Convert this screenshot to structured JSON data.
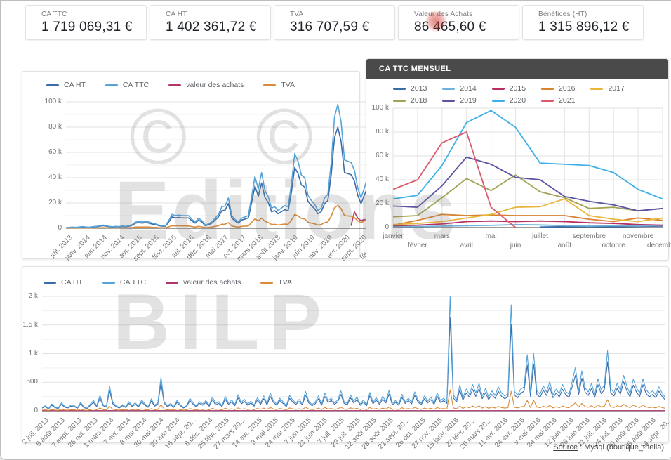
{
  "kpi_cards": [
    {
      "label": "CA TTC",
      "value": "1 719 069,31 €"
    },
    {
      "label": "CA HT",
      "value": "1 402 361,72 €"
    },
    {
      "label": "TVA",
      "value": "316 707,59 €"
    },
    {
      "label": "Valeur des Achats",
      "value": "86 465,60 €",
      "highlighted": true
    },
    {
      "label": "Bénéfices (HT)",
      "value": "1 315 896,12 €"
    }
  ],
  "watermark": {
    "copyright": "©",
    "editions": "Editions",
    "bilp": "BILP"
  },
  "source": {
    "label": "Source",
    "rest": " : Mysql (boutique_thelia)"
  },
  "colors": {
    "ca_ht": "#3a6ca8",
    "ca_ttc": "#55a3d9",
    "achats": "#b0356f",
    "tva": "#d98b38",
    "header_bar": "#4a4a4a",
    "grid_major": "#e2e2e2",
    "grid_minor": "#f0f0f0",
    "axis": "#5f5f5f"
  },
  "chart_data": [
    {
      "type": "line",
      "title": "",
      "unit": "k€",
      "ylim": [
        0,
        100
      ],
      "y_ticks": [
        "100 k",
        "80 k",
        "60 k",
        "40 k",
        "20 k",
        "0"
      ],
      "x_tick_labels": [
        "juil. 2013",
        "janv. 2014",
        "juin 2014",
        "nov. 2014",
        "avr. 2015",
        "sept. 2015",
        "févr. 2016",
        "juil. 2016",
        "déc. 2016",
        "mai 2017",
        "oct. 2017",
        "mars 2018",
        "août 2018",
        "janv. 2019",
        "juin 2019",
        "nov. 2019",
        "avr. 2020",
        "sept. 2020",
        "févr. 2021"
      ],
      "n_points": 95,
      "legend_order": [
        1,
        0,
        3,
        2
      ],
      "series": [
        {
          "name": "CA TTC",
          "color": "#55a3d9",
          "values": [
            0.4,
            0.7,
            0.9,
            0.7,
            1.0,
            1.3,
            1.0,
            0.8,
            1.2,
            1.5,
            1.8,
            2.5,
            2.2,
            1.5,
            1.2,
            1.5,
            1.3,
            1.8,
            1.5,
            2.0,
            3.0,
            5.0,
            5.5,
            5.0,
            5.5,
            5.0,
            4.0,
            3.5,
            2.5,
            2.0,
            2.0,
            6.0,
            11.0,
            10.0,
            10.5,
            10.0,
            10.0,
            10.0,
            7.0,
            5.0,
            8.0,
            6.0,
            2.5,
            3.5,
            5.0,
            8.0,
            11.0,
            17.0,
            17.5,
            24.0,
            10.0,
            7.0,
            5.0,
            8.0,
            9.0,
            10.0,
            25.0,
            41.0,
            31.0,
            44.0,
            30.0,
            25.0,
            16.0,
            17.0,
            14.0,
            16.0,
            18.0,
            17.0,
            35.0,
            59.0,
            53.0,
            42.0,
            40.0,
            26.0,
            22.0,
            19.0,
            14.0,
            16.0,
            24.0,
            27.0,
            52.0,
            88.0,
            98.0,
            84.0,
            54.0,
            53.0,
            52.0,
            46.0,
            32.0,
            24.0,
            32.0,
            40.0,
            71.0,
            80.0,
            17.0
          ]
        },
        {
          "name": "CA HT",
          "color": "#3a6ca8",
          "ratio_of": 0,
          "ratio": 0.8157
        },
        {
          "name": "TVA",
          "color": "#d98b38",
          "ratio_of": 0,
          "ratio": 0.1842
        },
        {
          "name": "valeur des achats",
          "color": "#b0356f",
          "start_index": 86,
          "values": [
            2,
            13,
            8,
            6,
            7,
            6,
            9,
            15,
            1
          ]
        }
      ]
    },
    {
      "type": "line",
      "title": "CA TTC MENSUEL",
      "unit": "k€",
      "ylim": [
        0,
        100
      ],
      "y_ticks": [
        "100 k",
        "80 k",
        "60 k",
        "40 k",
        "20 k",
        "0"
      ],
      "x_tick_labels": [
        "janvier",
        "février",
        "mars",
        "avril",
        "mai",
        "juin",
        "juillet",
        "août",
        "septembre",
        "octobre",
        "novembre",
        "décemb..."
      ],
      "n_points": 12,
      "series": [
        {
          "name": "2013",
          "color": "#3a6ca8",
          "values": [
            null,
            null,
            null,
            null,
            null,
            null,
            0.4,
            0.7,
            0.9,
            0.7,
            1.0,
            1.3
          ]
        },
        {
          "name": "2014",
          "color": "#6fb3dc",
          "values": [
            1.0,
            0.8,
            1.2,
            1.5,
            1.8,
            2.5,
            2.2,
            1.5,
            1.2,
            1.5,
            1.3,
            1.8
          ]
        },
        {
          "name": "2015",
          "color": "#b72e62",
          "values": [
            1.5,
            2.0,
            3.0,
            5.0,
            5.5,
            5.0,
            5.5,
            5.0,
            4.0,
            3.5,
            2.5,
            2.0
          ]
        },
        {
          "name": "2016",
          "color": "#d9822f",
          "values": [
            2.0,
            6.0,
            11.0,
            10.0,
            10.5,
            10.0,
            10.0,
            10.0,
            7.0,
            5.0,
            8.0,
            6.0
          ]
        },
        {
          "name": "2017",
          "color": "#e9b63c",
          "values": [
            2.5,
            3.5,
            5.0,
            8.0,
            11.0,
            17.0,
            17.5,
            24.0,
            10.0,
            7.0,
            5.0,
            8.0
          ]
        },
        {
          "name": "2018",
          "color": "#a2a352",
          "values": [
            9.0,
            10.0,
            25.0,
            41.0,
            31.0,
            44.0,
            30.0,
            25.0,
            16.0,
            17.0,
            14.0,
            16.0
          ]
        },
        {
          "name": "2019",
          "color": "#5a53a3",
          "values": [
            18.0,
            17.0,
            35.0,
            59.0,
            53.0,
            42.0,
            40.0,
            26.0,
            22.0,
            19.0,
            14.0,
            16.0
          ]
        },
        {
          "name": "2020",
          "color": "#3eb0e8",
          "values": [
            24.0,
            27.0,
            52.0,
            88.0,
            98.0,
            84.0,
            54.0,
            53.0,
            52.0,
            46.0,
            32.0,
            24.0
          ]
        },
        {
          "name": "2021",
          "color": "#da5a6e",
          "values": [
            32.0,
            40.0,
            71.0,
            80.0,
            17.0,
            0.0,
            null,
            null,
            null,
            null,
            null,
            null
          ]
        }
      ]
    },
    {
      "type": "line",
      "title": "",
      "unit": "€ / jour",
      "ylim": [
        0,
        2000
      ],
      "y_ticks": [
        "2 k",
        "1,5 k",
        "1 k",
        "500",
        "0"
      ],
      "x_tick_labels": [
        "2 juil. 2013",
        "6 août 2013",
        "7 sept. 2013",
        "26 oct. 2013",
        "1 mars 2014",
        "7 avr. 2014",
        "8 mai 2014",
        "30 mai 2014",
        "29 juin 2014",
        "16 sept. 20...",
        "8 déc. 2014",
        "25 févr. 2015",
        "27 mars 20...",
        "14 avr. 2015",
        "3 mai 2015",
        "24 mai 2015",
        "7 juin 2015",
        "21 juin 2015",
        "7 juil. 2015",
        "29 juil. 2015",
        "12 août 2015",
        "28 août 2015",
        "21 sept. 20...",
        "26 oct. 2015",
        "27 nov. 2015",
        "15 janv. 2016",
        "27 févr. 20...",
        "25 mars 20...",
        "11 avr. 2016",
        "24 avr. 2016",
        "9 mai 2016",
        "24 mai 2016",
        "12 juin 2016",
        "26 juin 2016",
        "11 juil. 2016",
        "24 juil. 2016",
        "9 août 2016",
        "25 août 2016",
        "14 sept. 20..."
      ],
      "n_points": 195,
      "legend_order": [
        1,
        0,
        3,
        2
      ],
      "series": [
        {
          "name": "CA TTC",
          "color": "#55a3d9",
          "values": [
            60,
            90,
            40,
            120,
            70,
            50,
            140,
            80,
            60,
            100,
            90,
            55,
            150,
            70,
            45,
            120,
            180,
            90,
            270,
            110,
            80,
            430,
            150,
            90,
            60,
            110,
            70,
            160,
            95,
            140,
            85,
            190,
            120,
            75,
            210,
            100,
            140,
            590,
            160,
            90,
            130,
            75,
            180,
            110,
            60,
            95,
            220,
            140,
            85,
            160,
            120,
            180,
            100,
            240,
            130,
            160,
            90,
            250,
            140,
            190,
            110,
            280,
            150,
            200,
            120,
            170,
            100,
            230,
            140,
            260,
            130,
            310,
            180,
            120,
            220,
            160,
            90,
            270,
            190,
            140,
            200,
            130,
            340,
            170,
            110,
            150,
            260,
            120,
            310,
            180,
            220,
            140,
            190,
            350,
            160,
            130,
            280,
            170,
            240,
            120,
            190,
            110,
            320,
            150,
            230,
            140,
            250,
            170,
            360,
            130,
            180,
            120,
            290,
            160,
            220,
            150,
            330,
            190,
            130,
            260,
            170,
            240,
            140,
            310,
            180,
            220,
            160,
            2000,
            280,
            190,
            450,
            230,
            380,
            290,
            460,
            310,
            480,
            260,
            390,
            240,
            350,
            270,
            420,
            310,
            260,
            300,
            1850,
            340,
            280,
            380,
            420,
            980,
            310,
            1000,
            350,
            290,
            440,
            330,
            510,
            280,
            380,
            300,
            460,
            340,
            290,
            520,
            760,
            350,
            700,
            400,
            330,
            480,
            290,
            560,
            370,
            450,
            1050,
            380,
            320,
            480,
            360,
            620,
            430,
            300,
            550,
            400,
            310,
            560,
            370,
            300,
            350,
            280,
            420,
            310,
            230
          ]
        },
        {
          "name": "CA HT",
          "color": "#3a6ca8",
          "ratio_of": 0,
          "ratio": 0.8157
        },
        {
          "name": "TVA",
          "color": "#d98b38",
          "ratio_of": 0,
          "ratio": 0.1842
        },
        {
          "name": "valeur des achats",
          "color": "#b0356f",
          "flat": 4
        }
      ]
    }
  ]
}
